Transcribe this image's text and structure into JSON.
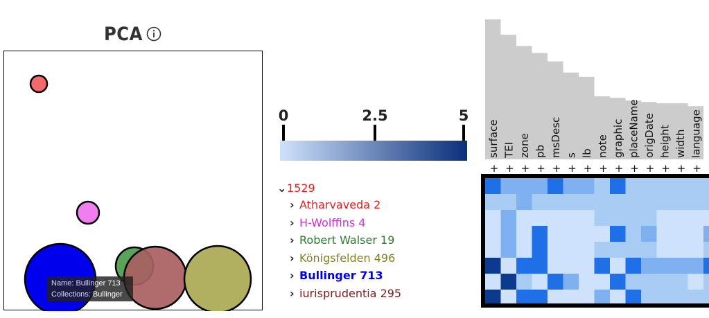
{
  "pca": {
    "title": "PCA",
    "info_icon": "info-circle-icon",
    "points": [
      {
        "name": "1529",
        "color": "#f46a6a"
      },
      {
        "name": "H-Wolffins 4",
        "color": "#f07ef0"
      },
      {
        "name": "Bullinger 713",
        "color": "#0000ee"
      },
      {
        "name": "Robert Walser 19",
        "color": "#5aa45a"
      },
      {
        "name": "iurisprudentia 295",
        "color": "#a96060"
      },
      {
        "name": "Königsfelden 496",
        "color": "#b0b060"
      }
    ],
    "tooltip": {
      "name_line": "Name: Bullinger 713",
      "collections_line": "Collections: Bullinger"
    }
  },
  "color_scale": {
    "ticks": [
      "0",
      "2.5",
      "5"
    ],
    "color_low": "#cfe2fb",
    "color_high": "#0a2f7a"
  },
  "tree": {
    "root": {
      "label": "1529",
      "color": "#e02020",
      "expanded": true
    },
    "children": [
      {
        "label": "Atharvaveda 2",
        "color": "#e02020",
        "bold": false
      },
      {
        "label": "H-Wolffins 4",
        "color": "#d030d0",
        "bold": false
      },
      {
        "label": "Robert Walser 19",
        "color": "#2a7a2a",
        "bold": false
      },
      {
        "label": "Königsfelden 496",
        "color": "#808020",
        "bold": false
      },
      {
        "label": "Bullinger 713",
        "color": "#0000ee",
        "bold": true
      },
      {
        "label": "iurisprudentia 295",
        "color": "#7a2020",
        "bold": false
      }
    ]
  },
  "elements": {
    "labels": [
      "surface",
      "TEI",
      "zone",
      "pb",
      "msDesc",
      "s",
      "lb",
      "note",
      "graphic",
      "placeName",
      "origDate",
      "height",
      "width",
      "language"
    ],
    "frequencies": [
      1.0,
      0.89,
      0.81,
      0.76,
      0.7,
      0.62,
      0.59,
      0.45,
      0.44,
      0.42,
      0.41,
      0.4,
      0.4,
      0.38
    ],
    "add_symbol": "+",
    "bar_color": "#cccccc"
  },
  "heatmap": {
    "levels": [
      [
        3,
        2,
        2,
        2,
        3,
        2,
        2,
        1,
        3,
        1,
        1,
        1,
        1,
        1,
        1
      ],
      [
        1,
        1,
        2,
        1,
        1,
        1,
        1,
        1,
        1,
        1,
        1,
        1,
        1,
        1,
        1
      ],
      [
        0,
        2,
        0,
        0,
        0,
        0,
        0,
        1,
        1,
        1,
        1,
        0,
        0,
        0,
        0
      ],
      [
        0,
        2,
        0,
        3,
        0,
        0,
        0,
        0,
        3,
        1,
        2,
        0,
        0,
        0,
        2
      ],
      [
        0,
        2,
        0,
        3,
        0,
        0,
        0,
        1,
        1,
        1,
        1,
        0,
        0,
        0,
        1
      ],
      [
        4,
        0,
        3,
        3,
        0,
        0,
        0,
        3,
        0,
        3,
        2,
        2,
        2,
        2,
        3
      ],
      [
        0,
        4,
        1,
        0,
        3,
        2,
        0,
        0,
        3,
        1,
        1,
        1,
        1,
        0,
        1
      ],
      [
        4,
        0,
        3,
        3,
        0,
        0,
        0,
        2,
        0,
        3,
        1,
        1,
        1,
        1,
        1
      ]
    ],
    "level_colors": [
      "#cfe2fb",
      "#a9ccf5",
      "#7fb1f0",
      "#1f6fe6",
      "#0c3a8e"
    ]
  }
}
